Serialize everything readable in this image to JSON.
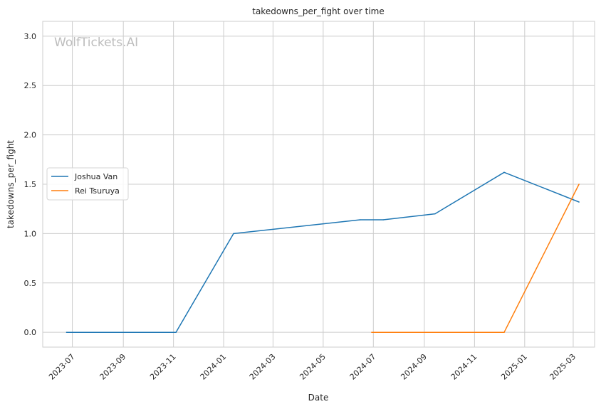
{
  "chart_data": {
    "type": "line",
    "title": "takedowns_per_fight over time",
    "xlabel": "Date",
    "ylabel": "takedowns_per_fight",
    "watermark": "WolfTickets.AI",
    "xlim": [
      "2023-05-26",
      "2025-03-27"
    ],
    "ylim": [
      -0.15,
      3.15
    ],
    "x_ticks": [
      "2023-07",
      "2023-09",
      "2023-11",
      "2024-01",
      "2024-03",
      "2024-05",
      "2024-07",
      "2024-09",
      "2024-11",
      "2025-01",
      "2025-03"
    ],
    "y_ticks": [
      "0.0",
      "0.5",
      "1.0",
      "1.5",
      "2.0",
      "2.5",
      "3.0"
    ],
    "grid": true,
    "legend_position": "center-left",
    "series": [
      {
        "name": "Joshua Van",
        "color": "#1f77b4",
        "points": [
          {
            "x": "2023-06-24",
            "y": 0.0
          },
          {
            "x": "2023-11-04",
            "y": 0.0
          },
          {
            "x": "2024-01-13",
            "y": 1.0
          },
          {
            "x": "2024-06-15",
            "y": 1.14
          },
          {
            "x": "2024-07-13",
            "y": 1.14
          },
          {
            "x": "2024-09-14",
            "y": 1.2
          },
          {
            "x": "2024-12-07",
            "y": 1.62
          },
          {
            "x": "2025-03-08",
            "y": 1.32
          }
        ]
      },
      {
        "name": "Rei Tsuruya",
        "color": "#ff7f0e",
        "points": [
          {
            "x": "2024-06-29",
            "y": 0.0
          },
          {
            "x": "2024-12-07",
            "y": 0.0
          },
          {
            "x": "2025-03-08",
            "y": 1.5
          }
        ]
      }
    ]
  }
}
